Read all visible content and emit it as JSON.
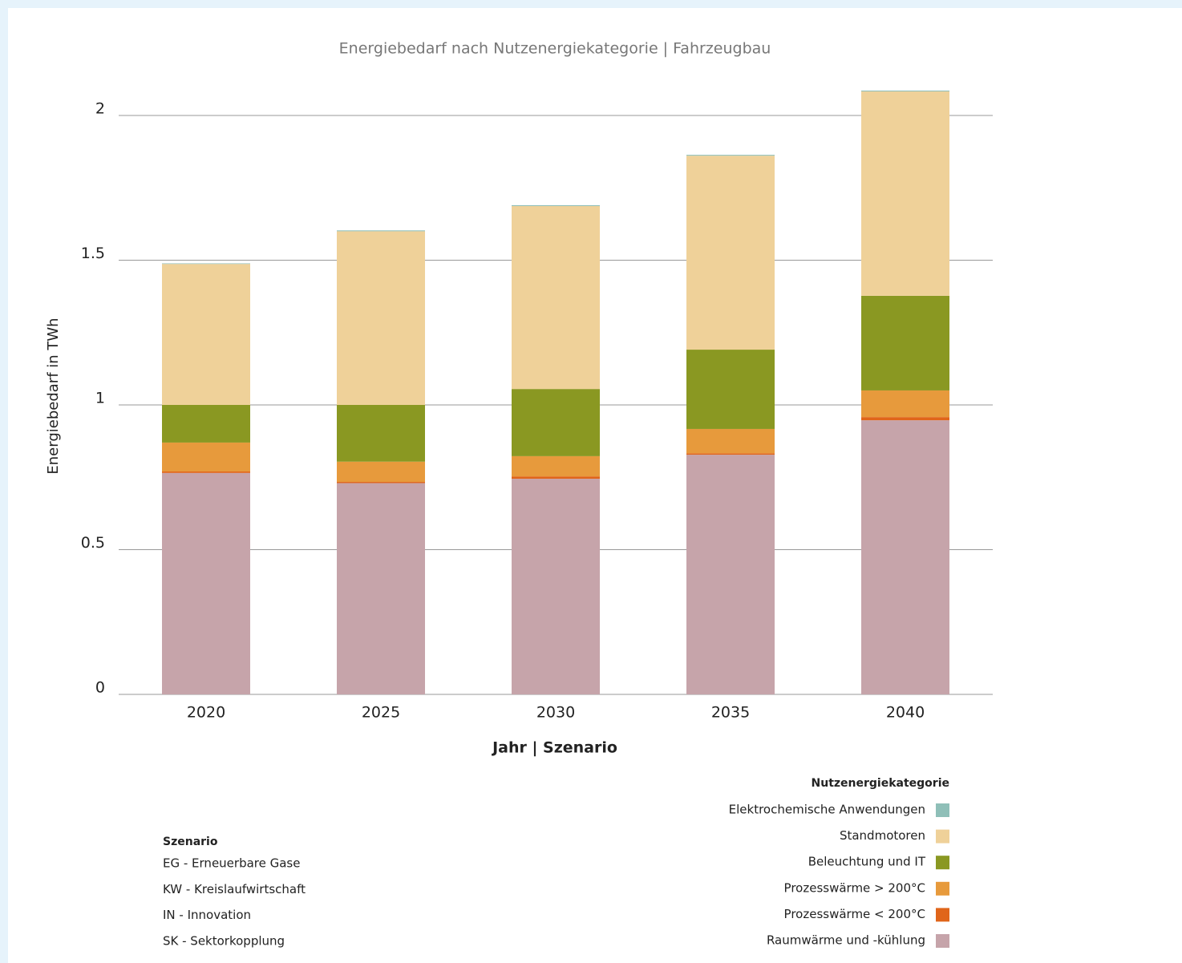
{
  "chart_data": {
    "type": "stacked_bar",
    "title": "Energiebedarf nach Nutzenergiekategorie | Fahrzeugbau",
    "x_label": "Jahr | Szenario",
    "y_label": "Energiebedarf in TWh",
    "categories": [
      "2020",
      "2025",
      "2030",
      "2035",
      "2040"
    ],
    "series": [
      {
        "name": "Raumwärme und -kühlung",
        "color": "#c6a4aa",
        "values": [
          0.765,
          0.73,
          0.745,
          0.828,
          0.947
        ]
      },
      {
        "name": "Prozesswärme < 200°C",
        "color": "#e0651a",
        "values": [
          0.005,
          0.004,
          0.008,
          0.005,
          0.011
        ]
      },
      {
        "name": "Prozesswärme > 200°C",
        "color": "#e79a3c",
        "values": [
          0.1,
          0.07,
          0.07,
          0.084,
          0.092
        ]
      },
      {
        "name": "Beleuchtung und IT",
        "color": "#8a9822",
        "values": [
          0.13,
          0.196,
          0.232,
          0.274,
          0.327
        ]
      },
      {
        "name": "Standmotoren",
        "color": "#efd199",
        "values": [
          0.487,
          0.6,
          0.632,
          0.67,
          0.706
        ]
      },
      {
        "name": "Elektrochemische Anwendungen",
        "color": "#8fbfb8",
        "values": [
          0.002,
          0.003,
          0.003,
          0.003,
          0.003
        ]
      }
    ],
    "ylim": [
      0,
      2.1
    ],
    "yticks": [
      0,
      0.5,
      1,
      1.5,
      2
    ],
    "grid": true,
    "legend_title": "Nutzenergiekategorie",
    "legend_position": "bottom-right"
  },
  "scenario_legend": {
    "title": "Szenario",
    "items": [
      "EG - Erneuerbare Gase",
      "KW - Kreislaufwirtschaft",
      "IN - Innovation",
      "SK - Sektorkopplung"
    ]
  }
}
